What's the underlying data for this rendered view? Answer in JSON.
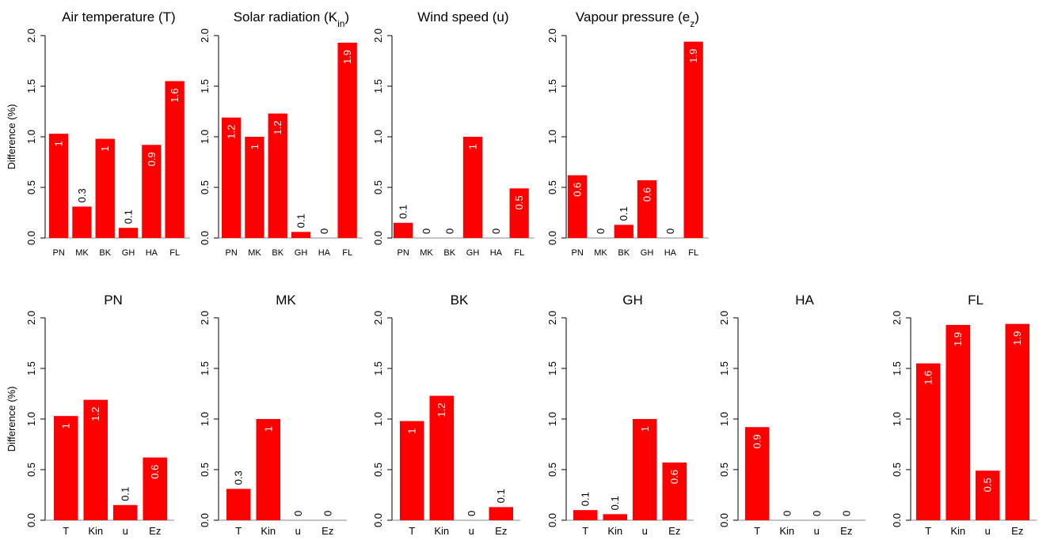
{
  "ylabel": "Difference (%)",
  "y_ticks": [
    "0.0",
    "0.5",
    "1.0",
    "1.5",
    "2.0"
  ],
  "colors": {
    "bar": "#ff0000",
    "bar_label_inside": "#ffffff",
    "bar_label_outside": "#000000",
    "axis": "#000000"
  },
  "chart_data": [
    {
      "type": "bar",
      "title": "Air temperature (T)",
      "categories": [
        "PN",
        "MK",
        "BK",
        "GH",
        "HA",
        "FL"
      ],
      "values": [
        1.03,
        0.31,
        0.98,
        0.1,
        0.92,
        1.55
      ],
      "labels": [
        "1",
        "0.3",
        "1",
        "0.1",
        "0.9",
        "1.6"
      ],
      "ylim": [
        0,
        2
      ],
      "ylabel": "Difference (%)"
    },
    {
      "type": "bar",
      "title": "Solar radiation (K",
      "title_sub": "in",
      "title_tail": ")",
      "categories": [
        "PN",
        "MK",
        "BK",
        "GH",
        "HA",
        "FL"
      ],
      "values": [
        1.19,
        1.0,
        1.23,
        0.06,
        0.0,
        1.93
      ],
      "labels": [
        "1.2",
        "1",
        "1.2",
        "0.1",
        "0",
        "1.9"
      ],
      "ylim": [
        0,
        2
      ]
    },
    {
      "type": "bar",
      "title": "Wind speed (u)",
      "categories": [
        "PN",
        "MK",
        "BK",
        "GH",
        "HA",
        "FL"
      ],
      "values": [
        0.15,
        0.0,
        0.0,
        1.0,
        0.0,
        0.49
      ],
      "labels": [
        "0.1",
        "0",
        "0",
        "1",
        "0",
        "0.5"
      ],
      "ylim": [
        0,
        2
      ]
    },
    {
      "type": "bar",
      "title": "Vapour pressure (e",
      "title_sub": "z",
      "title_tail": ")",
      "categories": [
        "PN",
        "MK",
        "BK",
        "GH",
        "HA",
        "FL"
      ],
      "values": [
        0.62,
        0.0,
        0.13,
        0.57,
        0.0,
        1.94
      ],
      "labels": [
        "0.6",
        "0",
        "0.1",
        "0.6",
        "0",
        "1.9"
      ],
      "ylim": [
        0,
        2
      ]
    },
    {
      "type": "bar",
      "title": "PN",
      "categories": [
        "T",
        "Kin",
        "u",
        "Ez"
      ],
      "values": [
        1.03,
        1.19,
        0.15,
        0.62
      ],
      "labels": [
        "1",
        "1.2",
        "0.1",
        "0.6"
      ],
      "ylim": [
        0,
        2
      ],
      "ylabel": "Difference (%)"
    },
    {
      "type": "bar",
      "title": "MK",
      "categories": [
        "T",
        "Kin",
        "u",
        "Ez"
      ],
      "values": [
        0.31,
        1.0,
        0.0,
        0.0
      ],
      "labels": [
        "0.3",
        "1",
        "0",
        "0"
      ],
      "ylim": [
        0,
        2
      ]
    },
    {
      "type": "bar",
      "title": "BK",
      "categories": [
        "T",
        "Kin",
        "u",
        "Ez"
      ],
      "values": [
        0.98,
        1.23,
        0.0,
        0.13
      ],
      "labels": [
        "1",
        "1.2",
        "0",
        "0.1"
      ],
      "ylim": [
        0,
        2
      ]
    },
    {
      "type": "bar",
      "title": "GH",
      "categories": [
        "T",
        "Kin",
        "u",
        "Ez"
      ],
      "values": [
        0.1,
        0.06,
        1.0,
        0.57
      ],
      "labels": [
        "0.1",
        "0.1",
        "1",
        "0.6"
      ],
      "ylim": [
        0,
        2
      ]
    },
    {
      "type": "bar",
      "title": "HA",
      "categories": [
        "T",
        "Kin",
        "u",
        "Ez"
      ],
      "values": [
        0.92,
        0.0,
        0.0,
        0.0
      ],
      "labels": [
        "0.9",
        "0",
        "0",
        "0"
      ],
      "ylim": [
        0,
        2
      ]
    },
    {
      "type": "bar",
      "title": "FL",
      "categories": [
        "T",
        "Kin",
        "u",
        "Ez"
      ],
      "values": [
        1.55,
        1.93,
        0.49,
        1.94
      ],
      "labels": [
        "1.6",
        "1.9",
        "0.5",
        "1.9"
      ],
      "ylim": [
        0,
        2
      ]
    }
  ]
}
